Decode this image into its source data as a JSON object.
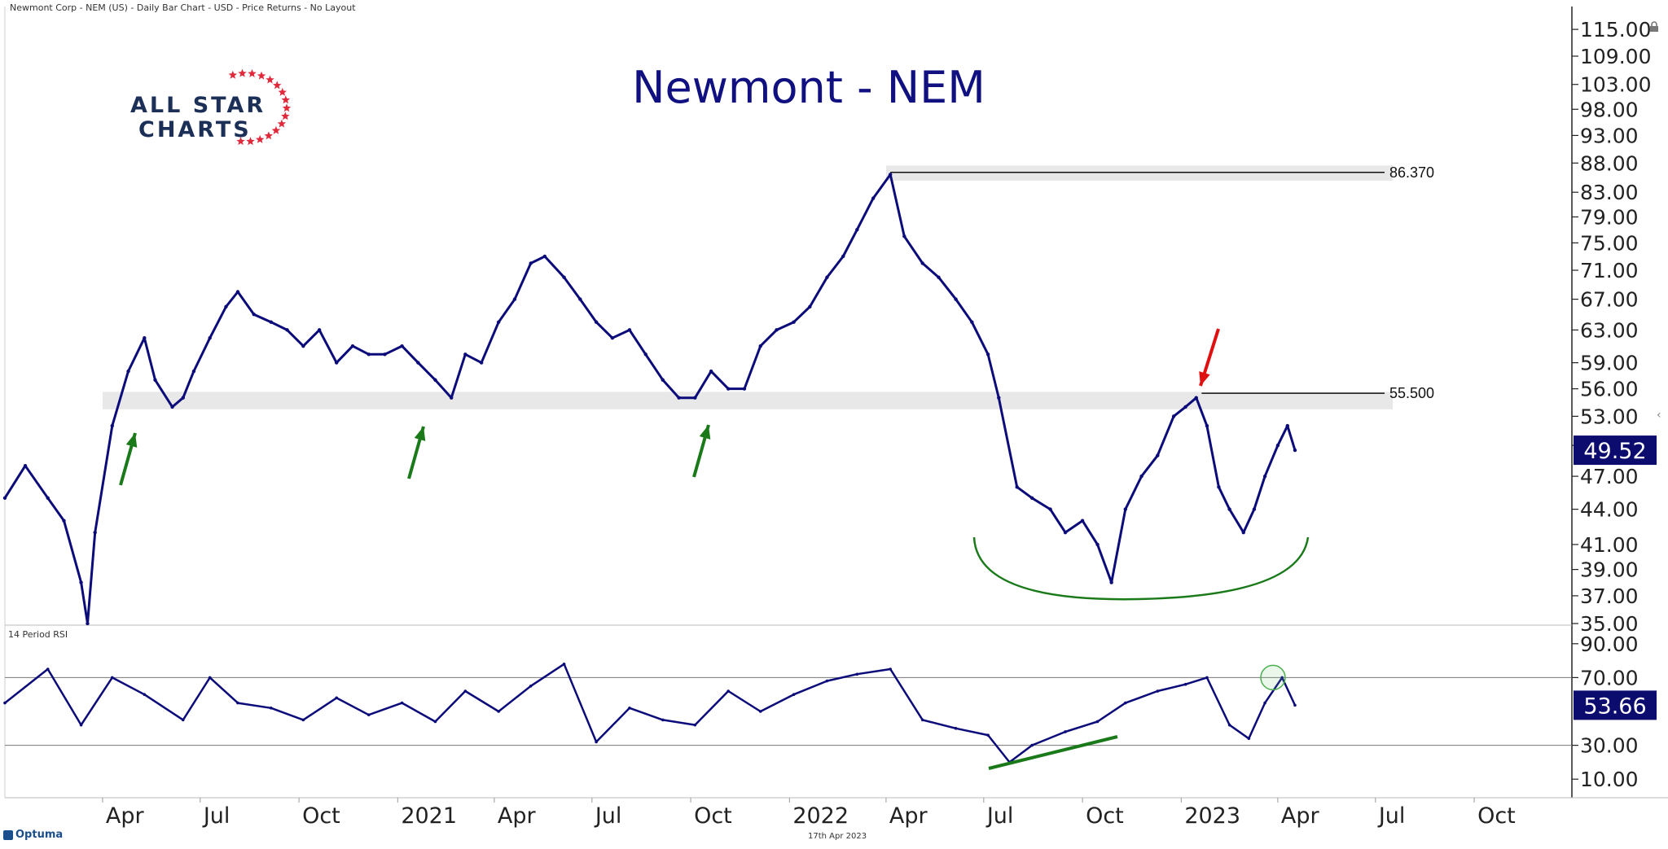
{
  "header": "Newmont Corp - NEM (US) - Daily Bar Chart - USD - Price Returns - No Layout",
  "footer_date": "17th Apr 2023",
  "brand": "Optuma",
  "logo": {
    "line1": "ALL STAR",
    "line2": "CHARTS"
  },
  "colors": {
    "price": "#0b0b7a",
    "resistance": "#e8e8e8",
    "green": "#1a7a1a",
    "red": "#e01010",
    "axis_text": "#222222"
  },
  "chart_data": [
    {
      "type": "line",
      "panel": "price",
      "title": "Newmont - NEM",
      "x_labels": [
        "Apr",
        "Jul",
        "Oct",
        "2021",
        "Apr",
        "Jul",
        "Oct",
        "2022",
        "Apr",
        "Jul",
        "Oct",
        "2023",
        "Apr",
        "Jul",
        "Oct"
      ],
      "x_label_dates": [
        "2020-04-01",
        "2020-07-01",
        "2020-10-01",
        "2021-01-01",
        "2021-04-01",
        "2021-07-01",
        "2021-10-01",
        "2022-01-01",
        "2022-04-01",
        "2022-07-01",
        "2022-10-01",
        "2023-01-01",
        "2023-04-01",
        "2023-07-01",
        "2023-10-01"
      ],
      "y_ticks": [
        35,
        37,
        39,
        41,
        44,
        47,
        50,
        53,
        56,
        59,
        63,
        67,
        71,
        75,
        79,
        83,
        88,
        93,
        98,
        103,
        109,
        115
      ],
      "y_labels": [
        "35.00",
        "37.00",
        "39.00",
        "41.00",
        "44.00",
        "47.00",
        "50.00",
        "53.00",
        "56.00",
        "59.00",
        "63.00",
        "67.00",
        "71.00",
        "75.00",
        "79.00",
        "83.00",
        "88.00",
        "93.00",
        "98.00",
        "103.00",
        "109.00",
        "115.00"
      ],
      "scale": "log",
      "ylim": [
        35,
        120
      ],
      "xlim": [
        "2020-01-01",
        "2023-12-31"
      ],
      "series": [
        {
          "x": [
            "2020-01-01",
            "2020-01-20",
            "2020-02-10",
            "2020-02-25",
            "2020-03-12",
            "2020-03-18",
            "2020-03-25",
            "2020-04-10",
            "2020-04-25",
            "2020-05-10",
            "2020-05-20",
            "2020-06-05",
            "2020-06-15",
            "2020-06-25",
            "2020-07-10",
            "2020-07-25",
            "2020-08-05",
            "2020-08-20",
            "2020-09-05",
            "2020-09-20",
            "2020-10-05",
            "2020-10-20",
            "2020-11-05",
            "2020-11-20",
            "2020-12-05",
            "2020-12-20",
            "2021-01-05",
            "2021-01-20",
            "2021-02-05",
            "2021-02-20",
            "2021-03-05",
            "2021-03-20",
            "2021-04-05",
            "2021-04-20",
            "2021-05-05",
            "2021-05-18",
            "2021-06-05",
            "2021-06-20",
            "2021-07-05",
            "2021-07-20",
            "2021-08-05",
            "2021-08-20",
            "2021-09-05",
            "2021-09-20",
            "2021-10-05",
            "2021-10-20",
            "2021-11-05",
            "2021-11-20",
            "2021-12-05",
            "2021-12-20",
            "2022-01-05",
            "2022-01-20",
            "2022-02-05",
            "2022-02-20",
            "2022-03-05",
            "2022-03-20",
            "2022-04-05",
            "2022-04-18",
            "2022-05-05",
            "2022-05-20",
            "2022-06-05",
            "2022-06-20",
            "2022-07-05",
            "2022-07-15",
            "2022-08-01",
            "2022-08-15",
            "2022-09-01",
            "2022-09-15",
            "2022-10-01",
            "2022-10-15",
            "2022-10-28",
            "2022-11-10",
            "2022-11-25",
            "2022-12-10",
            "2022-12-25",
            "2023-01-05",
            "2023-01-15",
            "2023-01-25",
            "2023-02-05",
            "2023-02-15",
            "2023-02-28",
            "2023-03-10",
            "2023-03-20",
            "2023-04-01",
            "2023-04-10",
            "2023-04-17"
          ],
          "values": [
            45,
            48,
            45,
            43,
            38,
            35,
            42,
            52,
            58,
            62,
            57,
            54,
            55,
            58,
            62,
            66,
            68,
            65,
            64,
            63,
            61,
            63,
            59,
            61,
            60,
            60,
            61,
            59,
            57,
            55,
            60,
            59,
            64,
            67,
            72,
            73,
            70,
            67,
            64,
            62,
            63,
            60,
            57,
            55,
            55,
            58,
            56,
            56,
            61,
            63,
            64,
            66,
            70,
            73,
            77,
            82,
            86,
            76,
            72,
            70,
            67,
            64,
            60,
            55,
            46,
            45,
            44,
            42,
            43,
            41,
            38,
            44,
            47,
            49,
            53,
            54,
            55,
            52,
            46,
            44,
            42,
            44,
            47,
            50,
            52,
            49.52
          ]
        }
      ],
      "annotations": [
        {
          "type": "hline",
          "label": "86.370",
          "value": 86.37,
          "from": "2022-04-05"
        },
        {
          "type": "hline",
          "label": "55.500",
          "value": 55.5,
          "from": "2023-01-20"
        },
        {
          "type": "band",
          "from_value": 54.1,
          "to_value": 55.3,
          "from": "2020-04-01"
        },
        {
          "type": "band",
          "from_value": 85.5,
          "to_value": 87.0,
          "from": "2022-04-01"
        },
        {
          "type": "price_badge",
          "label": "49.52",
          "value": 49.52
        }
      ]
    },
    {
      "type": "line",
      "panel": "rsi",
      "title": "14 Period RSI",
      "y_ticks": [
        10,
        30,
        70,
        90
      ],
      "y_labels": [
        "10.00",
        "30.00",
        "70.00",
        "90.00"
      ],
      "ylim": [
        0,
        100
      ],
      "reference_lines": [
        30,
        70
      ],
      "series": [
        {
          "x": [
            "2020-01-01",
            "2020-02-10",
            "2020-03-12",
            "2020-04-10",
            "2020-05-10",
            "2020-06-15",
            "2020-07-10",
            "2020-08-05",
            "2020-09-05",
            "2020-10-05",
            "2020-11-05",
            "2020-12-05",
            "2021-01-05",
            "2021-02-05",
            "2021-03-05",
            "2021-04-05",
            "2021-05-05",
            "2021-06-05",
            "2021-07-05",
            "2021-08-05",
            "2021-09-05",
            "2021-10-05",
            "2021-11-05",
            "2021-12-05",
            "2022-01-05",
            "2022-02-05",
            "2022-03-05",
            "2022-04-05",
            "2022-05-05",
            "2022-06-05",
            "2022-07-05",
            "2022-07-25",
            "2022-08-15",
            "2022-09-15",
            "2022-10-15",
            "2022-11-10",
            "2022-12-10",
            "2023-01-05",
            "2023-01-25",
            "2023-02-15",
            "2023-03-05",
            "2023-03-20",
            "2023-04-05",
            "2023-04-17"
          ],
          "values": [
            55,
            75,
            42,
            70,
            60,
            45,
            70,
            55,
            52,
            45,
            58,
            48,
            55,
            44,
            62,
            50,
            65,
            78,
            32,
            52,
            45,
            42,
            62,
            50,
            60,
            68,
            72,
            75,
            45,
            40,
            36,
            20,
            30,
            38,
            44,
            55,
            62,
            66,
            70,
            42,
            34,
            55,
            70,
            53.66
          ]
        }
      ],
      "annotations": [
        {
          "type": "price_badge",
          "label": "53.66",
          "value": 53.66
        }
      ]
    }
  ]
}
